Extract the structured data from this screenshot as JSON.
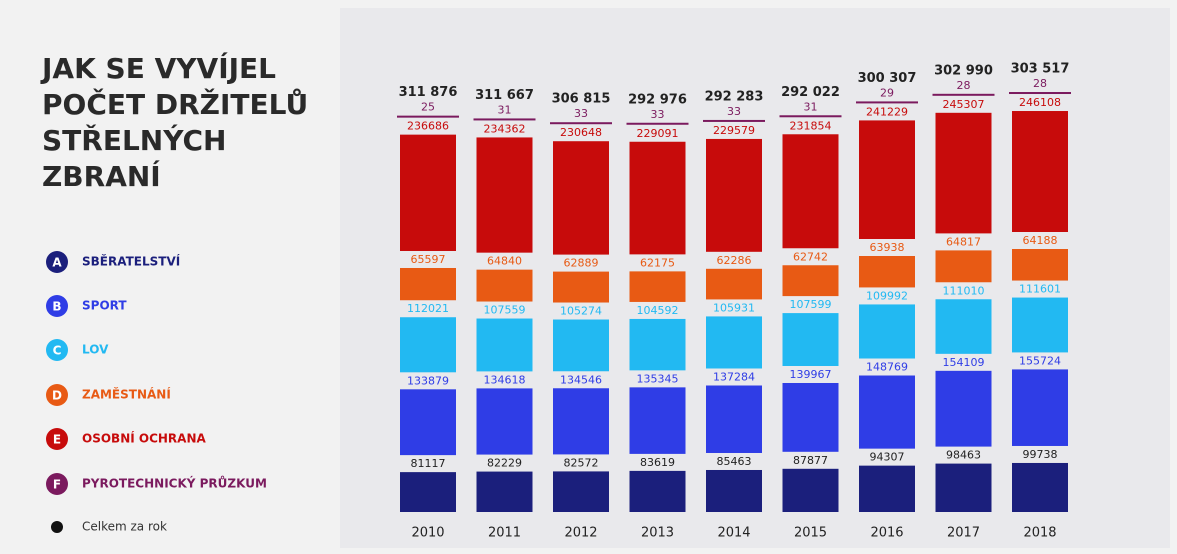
{
  "chart_data": {
    "type": "stacked-bar",
    "title": [
      "JAK SE VYVÍJEL",
      "POČET DRŽITELŮ",
      "STŘELNÝCH",
      "ZBRANÍ"
    ],
    "categories": [
      "2010",
      "2011",
      "2012",
      "2013",
      "2014",
      "2015",
      "2016",
      "2017",
      "2018"
    ],
    "series": [
      {
        "letter": "A",
        "name": "SBĚRATELSTVÍ",
        "color": "#1b1f7c",
        "values": [
          81117,
          82229,
          82572,
          83619,
          85463,
          87877,
          94307,
          98463,
          99738
        ]
      },
      {
        "letter": "B",
        "name": "SPORT",
        "color": "#2f3de6",
        "values": [
          133879,
          134618,
          134546,
          135345,
          137284,
          139967,
          148769,
          154109,
          155724
        ]
      },
      {
        "letter": "C",
        "name": "LOV",
        "color": "#22b9f2",
        "values": [
          112021,
          107559,
          105274,
          104592,
          105931,
          107599,
          109992,
          111010,
          111601
        ]
      },
      {
        "letter": "D",
        "name": "ZAMĚSTNÁNÍ",
        "color": "#e85a14",
        "values": [
          65597,
          64840,
          62889,
          62175,
          62286,
          62742,
          63938,
          64817,
          64188
        ]
      },
      {
        "letter": "E",
        "name": "OSOBNÍ OCHRANA",
        "color": "#c70b0b",
        "values": [
          236686,
          234362,
          230648,
          229091,
          229579,
          231854,
          241229,
          245307,
          246108
        ]
      },
      {
        "letter": "F",
        "name": "PYROTECHNICKÝ PRŮZKUM",
        "color": "#7b1a5e",
        "values": [
          25,
          31,
          33,
          33,
          33,
          31,
          29,
          28,
          28
        ]
      }
    ],
    "totals": {
      "name": "Celkem za rok",
      "color": "#111111",
      "values": [
        311876,
        311667,
        306815,
        292976,
        292283,
        292022,
        300307,
        302990,
        303517
      ],
      "value_labels": [
        "311 876",
        "311 667",
        "306 815",
        "292 976",
        "292 283",
        "292 022",
        "300 307",
        "302 990",
        "303 517"
      ]
    }
  }
}
